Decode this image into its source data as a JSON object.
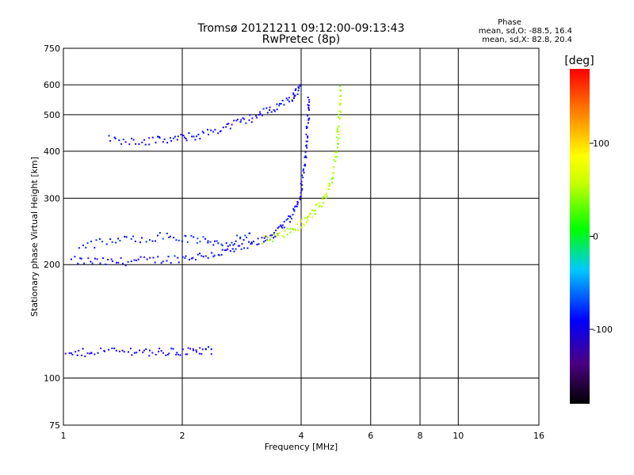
{
  "chart_data": {
    "type": "scatter",
    "title": "Tromsø 20121211 09:12:00-09:13:43",
    "subtitle": "RwPretec (8p)",
    "xlabel": "Frequency [MHz]",
    "ylabel": "Stationary phase Virtual Height [km]",
    "x_scale": "log",
    "y_scale": "log",
    "xlim": [
      1,
      16
    ],
    "ylim": [
      75,
      750
    ],
    "x_ticks": [
      1,
      2,
      4,
      6,
      8,
      10,
      16
    ],
    "y_ticks": [
      75,
      100,
      200,
      300,
      400,
      500,
      600,
      750
    ],
    "grid": true,
    "phase_stats": {
      "header": "Phase",
      "line_o": "mean, sd,O: -88.5, 16.4",
      "line_x": "mean, sd,X:  82.8, 20.4"
    },
    "colorbar": {
      "label": "[deg]",
      "range": [
        -180,
        180
      ],
      "ticks": [
        100,
        0,
        -100
      ]
    },
    "traces": [
      {
        "role": "F layer O-mode trace",
        "phase_deg": -110,
        "points": [
          [
            1.05,
            205
          ],
          [
            1.3,
            203
          ],
          [
            1.6,
            205
          ],
          [
            2.0,
            208
          ],
          [
            2.4,
            213
          ],
          [
            2.8,
            220
          ],
          [
            3.2,
            232
          ],
          [
            3.5,
            245
          ],
          [
            3.8,
            270
          ],
          [
            4.0,
            310
          ],
          [
            4.1,
            380
          ],
          [
            4.15,
            470
          ],
          [
            4.2,
            560
          ]
        ]
      },
      {
        "role": "F layer X-mode trace",
        "phase_deg": 85,
        "points": [
          [
            3.2,
            232
          ],
          [
            3.6,
            240
          ],
          [
            4.0,
            255
          ],
          [
            4.3,
            275
          ],
          [
            4.6,
            300
          ],
          [
            4.8,
            340
          ],
          [
            4.95,
            420
          ],
          [
            5.0,
            500
          ],
          [
            5.05,
            600
          ]
        ]
      },
      {
        "role": "upper F echo band",
        "phase_deg": -110,
        "points": [
          [
            1.3,
            430
          ],
          [
            1.6,
            425
          ],
          [
            1.9,
            430
          ],
          [
            2.2,
            440
          ],
          [
            2.6,
            465
          ],
          [
            3.0,
            490
          ],
          [
            3.4,
            520
          ],
          [
            3.8,
            555
          ],
          [
            4.0,
            600
          ]
        ]
      },
      {
        "role": "spread F band",
        "phase_deg": -100,
        "points": [
          [
            1.1,
            225
          ],
          [
            1.4,
            232
          ],
          [
            1.8,
            238
          ],
          [
            2.2,
            232
          ],
          [
            2.6,
            228
          ],
          [
            3.0,
            240
          ]
        ]
      },
      {
        "role": "E layer echoes",
        "phase_deg": -115,
        "points": [
          [
            1.02,
            115
          ],
          [
            1.2,
            118
          ],
          [
            1.5,
            118
          ],
          [
            1.8,
            117
          ],
          [
            2.1,
            118
          ],
          [
            2.4,
            118
          ]
        ]
      }
    ]
  }
}
